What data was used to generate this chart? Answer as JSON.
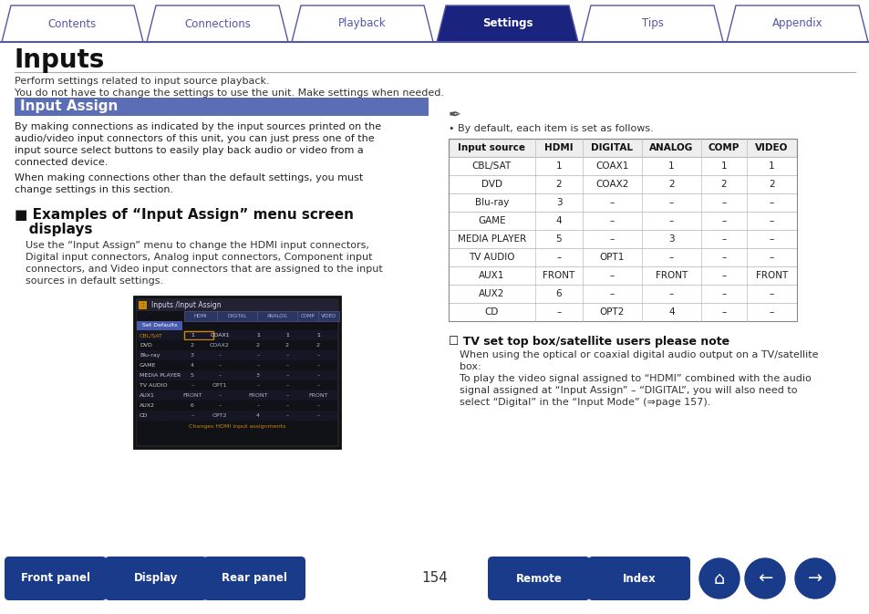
{
  "title": "Inputs",
  "subtitle_line1": "Perform settings related to input source playback.",
  "subtitle_line2": "You do not have to change the settings to use the unit. Make settings when needed.",
  "section_title": "Input Assign",
  "section_color": "#5a6db5",
  "section_text_color": "#ffffff",
  "example_title_line1": "■ Examples of “Input Assign” menu screen",
  "example_title_line2": "   displays",
  "example_body_lines": [
    "Use the “Input Assign” menu to change the HDMI input connectors,",
    "Digital input connectors, Analog input connectors, Component input",
    "connectors, and Video input connectors that are assigned to the input",
    "sources in default settings."
  ],
  "note_text": "• By default, each item is set as follows.",
  "table_headers": [
    "Input source",
    "HDMI",
    "DIGITAL",
    "ANALOG",
    "COMP",
    "VIDEO"
  ],
  "table_col_widths": [
    95,
    52,
    65,
    65,
    50,
    55
  ],
  "table_rows": [
    [
      "CBL/SAT",
      "1",
      "COAX1",
      "1",
      "1",
      "1"
    ],
    [
      "DVD",
      "2",
      "COAX2",
      "2",
      "2",
      "2"
    ],
    [
      "Blu-ray",
      "3",
      "–",
      "–",
      "–",
      "–"
    ],
    [
      "GAME",
      "4",
      "–",
      "–",
      "–",
      "–"
    ],
    [
      "MEDIA PLAYER",
      "5",
      "–",
      "3",
      "–",
      "–"
    ],
    [
      "TV AUDIO",
      "–",
      "OPT1",
      "–",
      "–",
      "–"
    ],
    [
      "AUX1",
      "FRONT",
      "–",
      "FRONT",
      "–",
      "FRONT"
    ],
    [
      "AUX2",
      "6",
      "–",
      "–",
      "–",
      "–"
    ],
    [
      "CD",
      "–",
      "OPT2",
      "4",
      "–",
      "–"
    ]
  ],
  "tv_note_title": "☐ TV set top box/satellite users please note",
  "tv_note_lines": [
    "When using the optical or coaxial digital audio output on a TV/satellite",
    "box:",
    "To play the video signal assigned to “HDMI” combined with the audio",
    "signal assigned at “Input Assign” – “DIGITAL”, you will also need to",
    "select “Digital” in the “Input Mode” (⇒page 157)."
  ],
  "nav_tabs": [
    "Contents",
    "Connections",
    "Playback",
    "Settings",
    "Tips",
    "Appendix"
  ],
  "active_tab": "Settings",
  "tab_active_color": "#1a237e",
  "tab_inactive_color": "#ffffff",
  "tab_border_color": "#5555aa",
  "bottom_buttons": [
    "Front panel",
    "Display",
    "Rear panel",
    "Remote",
    "Index"
  ],
  "bottom_button_color": "#1a3a8a",
  "page_number": "154",
  "bg_color": "#ffffff",
  "screen_rows": [
    [
      "CBL/SAT",
      "1",
      "COAX1",
      "1",
      "1",
      "1"
    ],
    [
      "DVD",
      "2",
      "COAX2",
      "2",
      "2",
      "2"
    ],
    [
      "Blu-ray",
      "3",
      "–",
      "–",
      "–",
      "–"
    ],
    [
      "GAME",
      "4",
      "–",
      "–",
      "–",
      "–"
    ],
    [
      "MEDIA PLAYER",
      "5",
      "–",
      "3",
      "–",
      "–"
    ],
    [
      "TV AUDIO",
      "–",
      "OPT1",
      "–",
      "–",
      "–"
    ],
    [
      "AUX1",
      "FRONT",
      "–",
      "FRONT",
      "–",
      "FRONT"
    ],
    [
      "AUX2",
      "6",
      "–",
      "–",
      "–",
      "–"
    ],
    [
      "CD",
      "–",
      "OPT2",
      "4",
      "–",
      "–"
    ]
  ]
}
